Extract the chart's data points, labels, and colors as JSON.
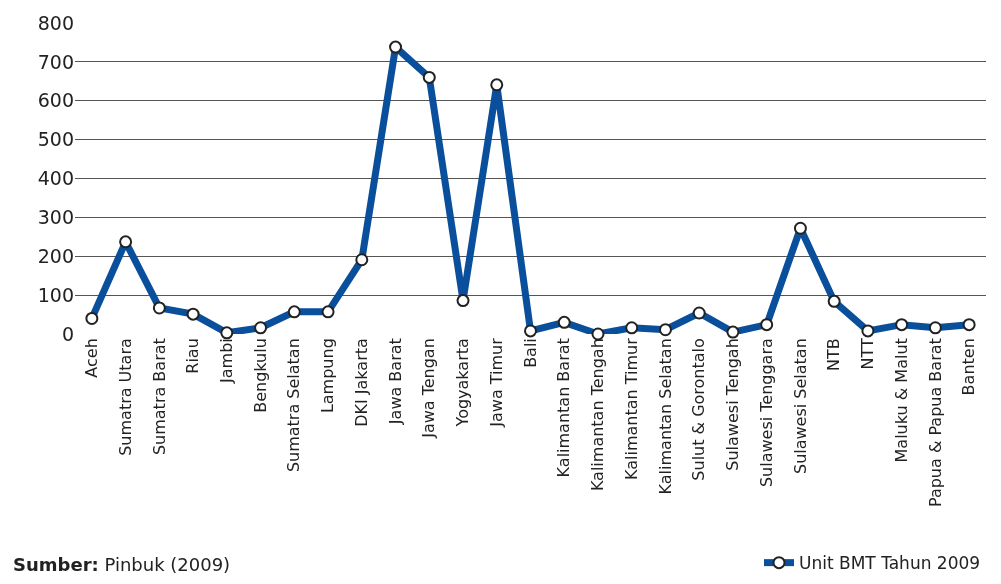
{
  "chart_data": {
    "type": "line",
    "categories": [
      "Aceh",
      "Sumatra Utara",
      "Sumatra Barat",
      "Riau",
      "Jambi",
      "Bengkulu",
      "Sumatra Selatan",
      "Lampung",
      "DKI Jakarta",
      "Jawa Barat",
      "Jawa Tengan",
      "Yogyakarta",
      "Jawa Timur",
      "Bali",
      "Kalimantan Barat",
      "Kalimantan Tengah",
      "Kalimantan Timur",
      "Kalimantan Selatan",
      "Sulut & Gorontalo",
      "Sulawesi Tengah",
      "Sulawesi Tenggara",
      "Sulawesi Selatan",
      "NTB",
      "NTT",
      "Maluku & Malut",
      "Papua & Papua Barat",
      "Banten"
    ],
    "series": [
      {
        "name": "Unit BMT Tahun 2009",
        "color": "#0a4f9c",
        "values": [
          40,
          237,
          67,
          51,
          3,
          16,
          57,
          57,
          191,
          738,
          660,
          86,
          641,
          8,
          30,
          0,
          16,
          11,
          54,
          5,
          24,
          272,
          84,
          8,
          24,
          16,
          24
        ]
      }
    ],
    "ylim": [
      0,
      800
    ],
    "yticks": [
      0,
      100,
      200,
      300,
      400,
      500,
      600,
      700,
      800
    ],
    "grid": "y",
    "legend": "bottom right",
    "marker": "circle",
    "line_style": "solid",
    "annotations": [
      "Sumber: Pinbuk (2009)"
    ]
  }
}
